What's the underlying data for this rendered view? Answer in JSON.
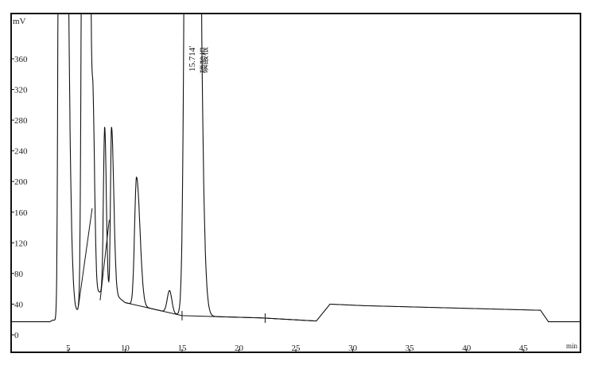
{
  "chart_data": {
    "type": "line",
    "title": "",
    "xlabel": "min",
    "ylabel": "mV",
    "xlim": [
      0,
      50
    ],
    "ylim": [
      -15,
      420
    ],
    "grid": false,
    "x_ticks": [
      5,
      10,
      15,
      20,
      25,
      30,
      35,
      40,
      45
    ],
    "y_ticks": [
      0,
      40,
      80,
      120,
      160,
      200,
      240,
      280,
      320,
      360
    ],
    "baseline": [
      [
        0,
        17
      ],
      [
        3.4,
        17
      ],
      [
        3.6,
        19
      ],
      [
        4.0,
        19
      ],
      [
        10,
        42
      ],
      [
        15,
        25
      ],
      [
        22,
        22
      ],
      [
        26.8,
        18
      ],
      [
        28,
        40
      ],
      [
        31,
        38
      ],
      [
        46.5,
        32
      ],
      [
        47.2,
        17
      ],
      [
        50,
        17
      ]
    ],
    "peaks": [
      {
        "rt": 4.3,
        "height": 2000
      },
      {
        "rt": 6.4,
        "height": 2000
      },
      {
        "rt": 7.2,
        "height": 200
      },
      {
        "rt": 8.2,
        "height": 260
      },
      {
        "rt": 8.8,
        "height": 262
      },
      {
        "rt": 11.0,
        "height": 202
      },
      {
        "rt": 13.9,
        "height": 34
      },
      {
        "rt": 15.714,
        "height": 3000
      }
    ],
    "annotations": [
      {
        "x": 15.714,
        "text": "15.714'"
      },
      {
        "x": 16.5,
        "text": "磷酸根"
      }
    ],
    "line_color": "#111111"
  }
}
